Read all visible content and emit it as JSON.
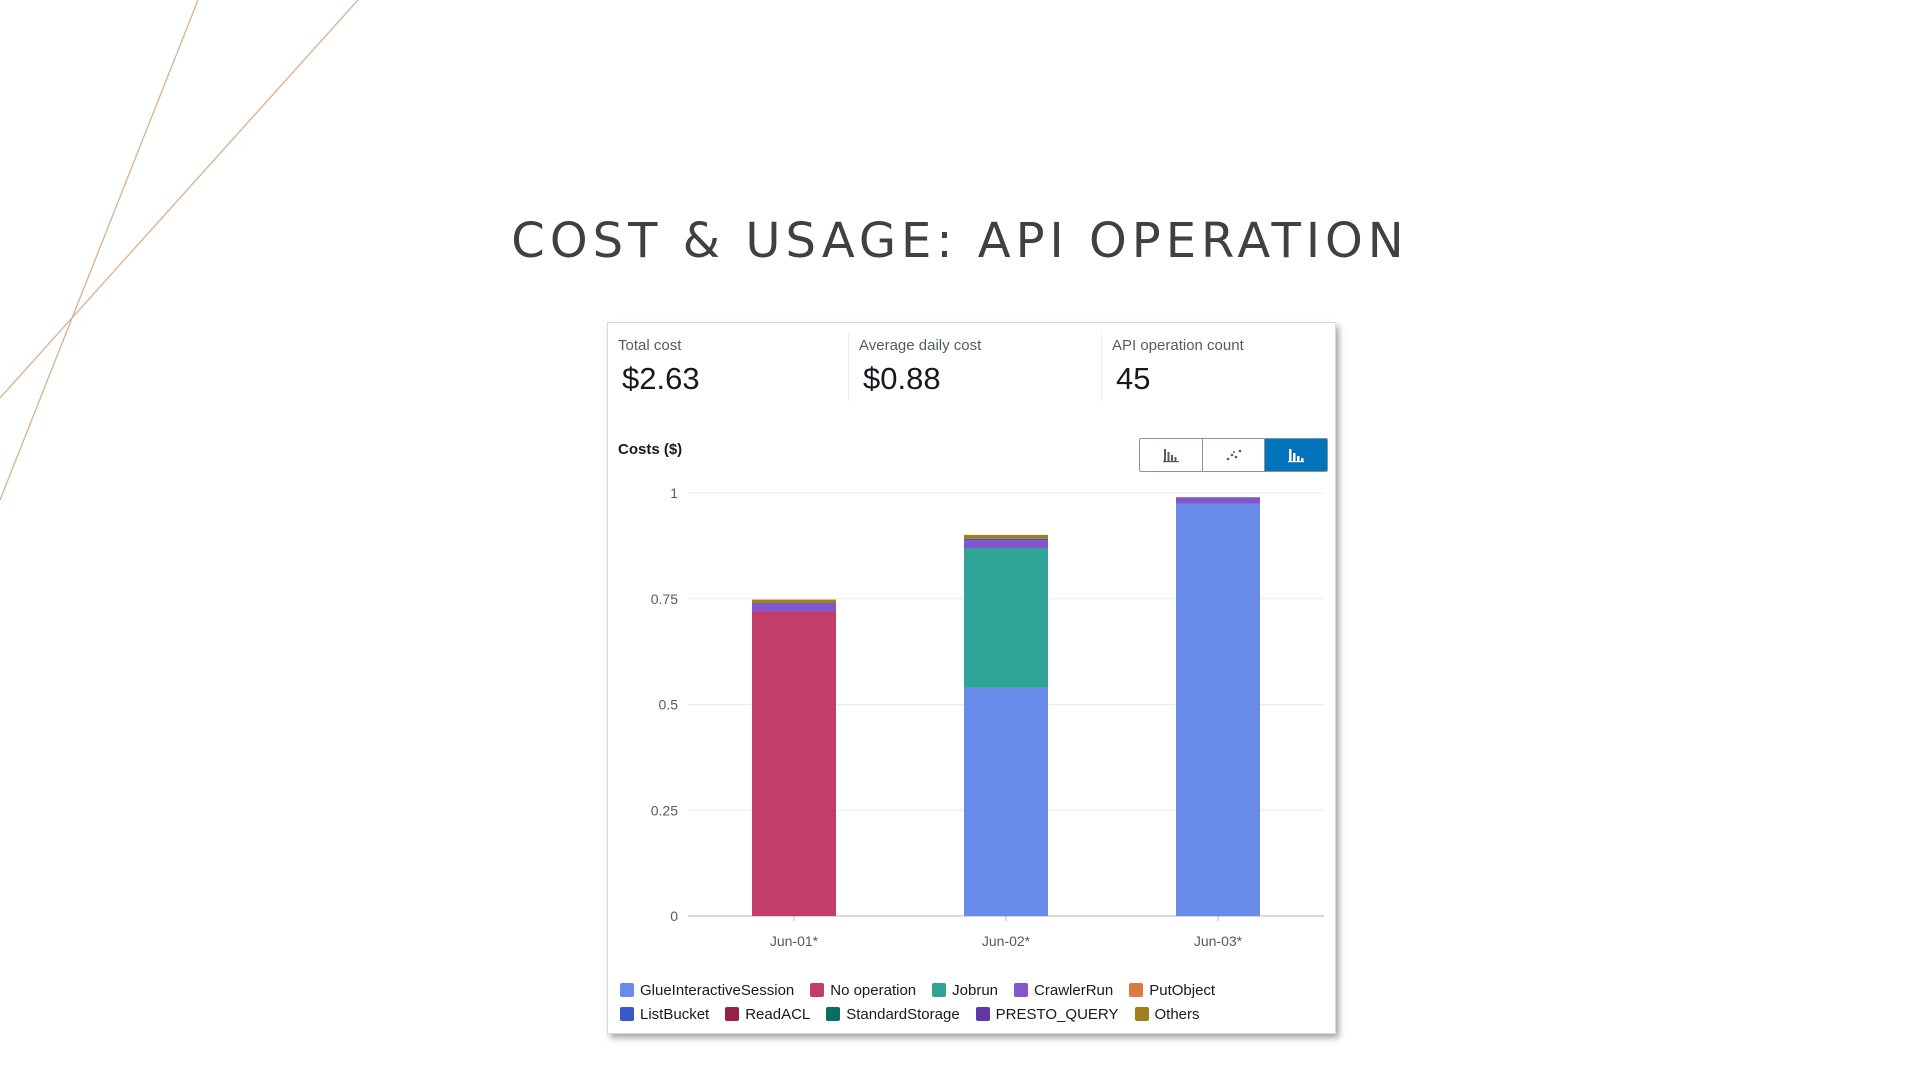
{
  "slide": {
    "title": "COST & USAGE: API OPERATION"
  },
  "metrics": [
    {
      "label": "Total cost",
      "value": "$2.63"
    },
    {
      "label": "Average daily cost",
      "value": "$0.88"
    },
    {
      "label": "API operation count",
      "value": "45"
    }
  ],
  "chart_view": {
    "options": [
      "bar-chart-icon",
      "line-chart-icon",
      "stacked-bar-chart-icon"
    ],
    "selected": "stacked-bar-chart-icon"
  },
  "colors": {
    "accent": "#0073bb",
    "decor_line": "#d9b08c"
  },
  "chart_data": {
    "type": "bar",
    "stacked": true,
    "ylabel": "Costs ($)",
    "ylim": [
      0,
      1
    ],
    "yticks": [
      {
        "value": 0,
        "label": "0"
      },
      {
        "value": 0.25,
        "label": "0.25"
      },
      {
        "value": 0.5,
        "label": "0.5"
      },
      {
        "value": 0.75,
        "label": "0.75"
      },
      {
        "value": 1,
        "label": "1"
      }
    ],
    "grid": true,
    "legend_position": "bottom",
    "categories": [
      "Jun-01*",
      "Jun-02*",
      "Jun-03*"
    ],
    "series": [
      {
        "name": "GlueInteractiveSession",
        "color": "#688ae8",
        "values": [
          0,
          0.54,
          0.975
        ]
      },
      {
        "name": "No operation",
        "color": "#c33d69",
        "values": [
          0.72,
          0,
          0
        ]
      },
      {
        "name": "Jobrun",
        "color": "#2ea597",
        "values": [
          0,
          0.33,
          0
        ]
      },
      {
        "name": "CrawlerRun",
        "color": "#8456ce",
        "values": [
          0.018,
          0.018,
          0.015
        ]
      },
      {
        "name": "PutObject",
        "color": "#e07941",
        "values": [
          0,
          0,
          0
        ]
      },
      {
        "name": "ListBucket",
        "color": "#3759ce",
        "values": [
          0.002,
          0.002,
          0
        ]
      },
      {
        "name": "ReadACL",
        "color": "#962249",
        "values": [
          0,
          0,
          0
        ]
      },
      {
        "name": "StandardStorage",
        "color": "#096f64",
        "values": [
          0,
          0,
          0
        ]
      },
      {
        "name": "PRESTO_QUERY",
        "color": "#6237a7",
        "values": [
          0,
          0.002,
          0
        ]
      },
      {
        "name": "Others",
        "color": "#a17f1a",
        "values": [
          0.008,
          0.009,
          0
        ]
      }
    ],
    "legend_rows": [
      [
        "GlueInteractiveSession",
        "No operation",
        "Jobrun",
        "CrawlerRun",
        "PutObject"
      ],
      [
        "ListBucket",
        "ReadACL",
        "StandardStorage",
        "PRESTO_QUERY",
        "Others"
      ]
    ]
  }
}
